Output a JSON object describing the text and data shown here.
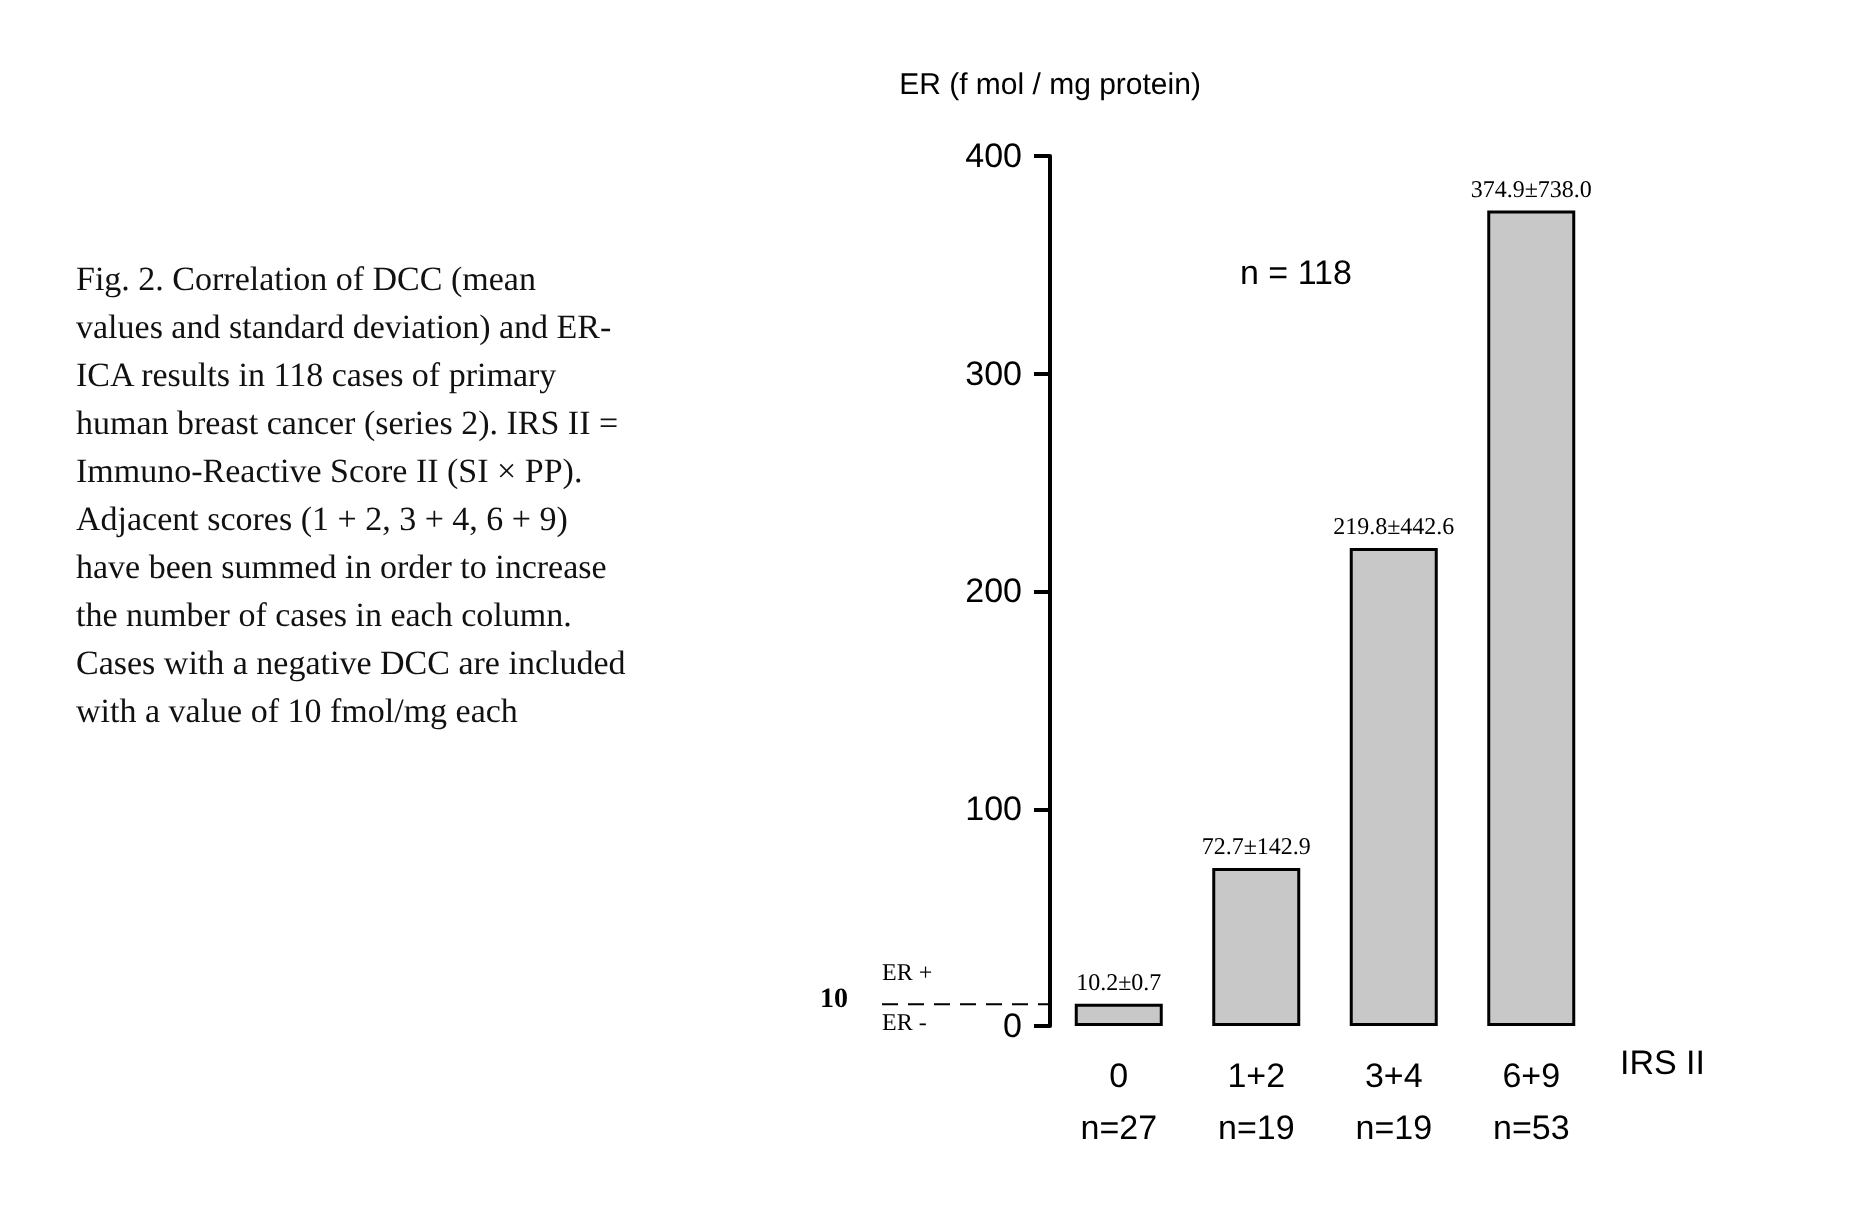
{
  "chart_data": {
    "type": "bar",
    "ylabel": "ER (f mol / mg protein)",
    "xlabel": "IRS II",
    "categories": [
      "0\nn=27",
      "1+2\nn=19",
      "3+4\nn=19",
      "6+9\nn=53"
    ],
    "values": [
      10.2,
      72.7,
      219.8,
      374.9
    ],
    "value_labels": [
      "10.2±0.7",
      "72.7±142.9",
      "219.8±442.6",
      "374.9±738.0"
    ],
    "color": "#c8c8c8",
    "ylim": [
      0,
      400
    ],
    "yticks": [
      0,
      100,
      200,
      300,
      400
    ],
    "grid": false,
    "ref_lines": [
      {
        "axis": "y",
        "value": 10,
        "label": "10",
        "line_style": "dashed"
      }
    ],
    "annotations": [
      "Fig. 2. Correlation of DCC (mean values and standard deviation) and ER-ICA results in 118 cases of primary human breast cancer (series 2). IRS II = Immuno-Reactive Score II (SI × PP). Adjacent scores (1 + 2, 3 + 4, 6 + 9) have been summed in order to increase the number of cases in each column. Cases with a negative DCC are included with a value of 10 fmol/mg each",
      "n = 118",
      "ER +",
      "ER -"
    ]
  }
}
